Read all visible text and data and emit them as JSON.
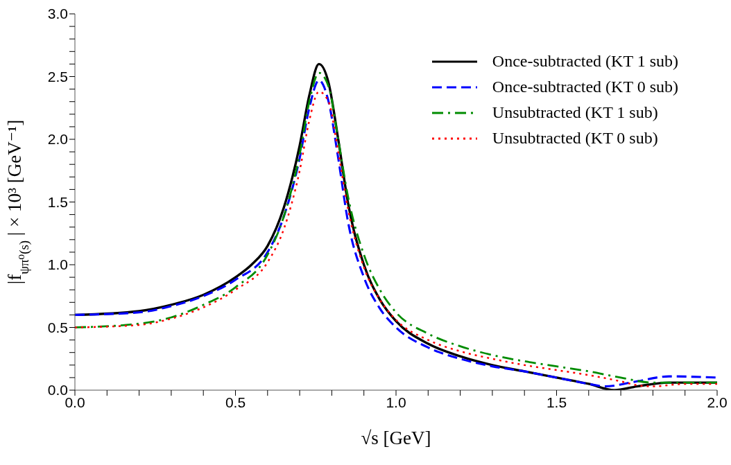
{
  "chart_data": {
    "type": "line",
    "xlabel": "√s   [GeV]",
    "ylabel": "|f$_{ψπ⁰(s)}$| × 10³  [GeV⁻¹]",
    "xlim": [
      0,
      2
    ],
    "ylim": [
      0,
      3
    ],
    "xticks": [
      {
        "value": 0,
        "label": "0.0"
      },
      {
        "value": 0.1,
        "label": null
      },
      {
        "value": 0.2,
        "label": null
      },
      {
        "value": 0.3,
        "label": null
      },
      {
        "value": 0.4,
        "label": null
      },
      {
        "value": 0.5,
        "label": "0.5"
      },
      {
        "value": 0.6,
        "label": null
      },
      {
        "value": 0.7,
        "label": null
      },
      {
        "value": 0.8,
        "label": null
      },
      {
        "value": 0.9,
        "label": null
      },
      {
        "value": 1,
        "label": "1.0"
      },
      {
        "value": 1.1,
        "label": null
      },
      {
        "value": 1.2,
        "label": null
      },
      {
        "value": 1.3,
        "label": null
      },
      {
        "value": 1.4,
        "label": null
      },
      {
        "value": 1.5,
        "label": "1.5"
      },
      {
        "value": 1.6,
        "label": null
      },
      {
        "value": 1.7,
        "label": null
      },
      {
        "value": 1.8,
        "label": null
      },
      {
        "value": 1.9,
        "label": null
      },
      {
        "value": 2,
        "label": "2.0"
      }
    ],
    "yticks": [
      {
        "value": 0,
        "label": "0.0"
      },
      {
        "value": 0.1,
        "label": null
      },
      {
        "value": 0.2,
        "label": null
      },
      {
        "value": 0.3,
        "label": null
      },
      {
        "value": 0.4,
        "label": null
      },
      {
        "value": 0.5,
        "label": "0.5"
      },
      {
        "value": 0.6,
        "label": null
      },
      {
        "value": 0.7,
        "label": null
      },
      {
        "value": 0.8,
        "label": null
      },
      {
        "value": 0.9,
        "label": null
      },
      {
        "value": 1,
        "label": "1.0"
      },
      {
        "value": 1.1,
        "label": null
      },
      {
        "value": 1.2,
        "label": null
      },
      {
        "value": 1.3,
        "label": null
      },
      {
        "value": 1.4,
        "label": null
      },
      {
        "value": 1.5,
        "label": "1.5"
      },
      {
        "value": 1.6,
        "label": null
      },
      {
        "value": 1.7,
        "label": null
      },
      {
        "value": 1.8,
        "label": null
      },
      {
        "value": 1.9,
        "label": null
      },
      {
        "value": 2,
        "label": "2.0"
      },
      {
        "value": 2.1,
        "label": null
      },
      {
        "value": 2.2,
        "label": null
      },
      {
        "value": 2.3,
        "label": null
      },
      {
        "value": 2.4,
        "label": null
      },
      {
        "value": 2.5,
        "label": "2.5"
      },
      {
        "value": 2.6,
        "label": null
      },
      {
        "value": 2.7,
        "label": null
      },
      {
        "value": 2.8,
        "label": null
      },
      {
        "value": 2.9,
        "label": null
      },
      {
        "value": 3,
        "label": "3.0"
      }
    ],
    "grid": false,
    "legend": "top right",
    "marker": "none",
    "series": [
      {
        "name": "Once-subtracted (KT 1 sub)",
        "color": "#000000",
        "line_style": "solid",
        "x": [
          0,
          0.2,
          0.3,
          0.4,
          0.5,
          0.55,
          0.6,
          0.65,
          0.7,
          0.73,
          0.76,
          0.79,
          0.82,
          0.85,
          0.9,
          0.95,
          1.0,
          1.1,
          1.2,
          1.3,
          1.4,
          1.5,
          1.6,
          1.68,
          1.75,
          1.85,
          2.0
        ],
        "values": [
          0.6,
          0.63,
          0.68,
          0.76,
          0.9,
          1.0,
          1.15,
          1.45,
          1.95,
          2.35,
          2.6,
          2.45,
          2.0,
          1.5,
          1.0,
          0.72,
          0.55,
          0.37,
          0.27,
          0.2,
          0.15,
          0.1,
          0.05,
          0.0,
          0.03,
          0.06,
          0.06
        ]
      },
      {
        "name": "Once-subtracted (KT 0 sub)",
        "color": "#0000ff",
        "line_style": "dashed",
        "x": [
          0,
          0.2,
          0.3,
          0.4,
          0.5,
          0.6,
          0.65,
          0.7,
          0.73,
          0.76,
          0.79,
          0.82,
          0.85,
          0.9,
          0.95,
          1.0,
          1.1,
          1.2,
          1.3,
          1.4,
          1.5,
          1.6,
          1.65,
          1.75,
          1.85,
          2.0
        ],
        "values": [
          0.6,
          0.62,
          0.67,
          0.75,
          0.88,
          1.1,
          1.38,
          1.85,
          2.25,
          2.47,
          2.3,
          1.85,
          1.35,
          0.9,
          0.65,
          0.5,
          0.34,
          0.25,
          0.19,
          0.15,
          0.1,
          0.05,
          0.03,
          0.07,
          0.11,
          0.1
        ]
      },
      {
        "name": "Unsubtracted (KT 1 sub)",
        "color": "#008c00",
        "line_style": "dashdot",
        "x": [
          0,
          0.2,
          0.3,
          0.4,
          0.5,
          0.6,
          0.65,
          0.7,
          0.73,
          0.76,
          0.79,
          0.82,
          0.85,
          0.9,
          0.95,
          1.0,
          1.1,
          1.2,
          1.3,
          1.4,
          1.5,
          1.6,
          1.7,
          1.8,
          1.9,
          2.0
        ],
        "values": [
          0.5,
          0.53,
          0.58,
          0.68,
          0.82,
          1.08,
          1.38,
          1.88,
          2.3,
          2.53,
          2.42,
          2.0,
          1.55,
          1.08,
          0.8,
          0.62,
          0.45,
          0.35,
          0.28,
          0.23,
          0.19,
          0.15,
          0.1,
          0.06,
          0.06,
          0.06
        ]
      },
      {
        "name": "Unsubtracted (KT 0 sub)",
        "color": "#ff0000",
        "line_style": "dotted",
        "x": [
          0,
          0.2,
          0.3,
          0.4,
          0.5,
          0.6,
          0.65,
          0.7,
          0.73,
          0.76,
          0.79,
          0.82,
          0.85,
          0.9,
          0.95,
          1.0,
          1.1,
          1.2,
          1.3,
          1.4,
          1.5,
          1.6,
          1.7,
          1.75,
          1.8,
          1.9,
          2.0
        ],
        "values": [
          0.5,
          0.52,
          0.57,
          0.66,
          0.8,
          1.02,
          1.28,
          1.75,
          2.15,
          2.38,
          2.3,
          1.9,
          1.45,
          0.98,
          0.72,
          0.56,
          0.4,
          0.31,
          0.25,
          0.2,
          0.16,
          0.12,
          0.07,
          0.04,
          0.03,
          0.05,
          0.05
        ]
      }
    ]
  }
}
